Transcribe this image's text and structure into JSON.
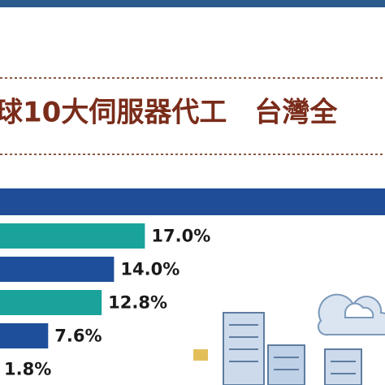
{
  "chart_data": {
    "type": "bar",
    "orientation": "horizontal",
    "title": "球10大伺服器代工　台灣全",
    "categories": [
      null,
      null,
      null,
      null,
      null
    ],
    "values": [
      17.0,
      14.0,
      12.8,
      7.6,
      1.8
    ],
    "value_labels": [
      "17.0%",
      "14.0%",
      "12.8%",
      "7.6%",
      "1.8%"
    ],
    "colors": [
      "#1aa39b",
      "#1e4f9a",
      "#1aa39b",
      "#1e4f9a",
      "#1aa39b"
    ]
  }
}
